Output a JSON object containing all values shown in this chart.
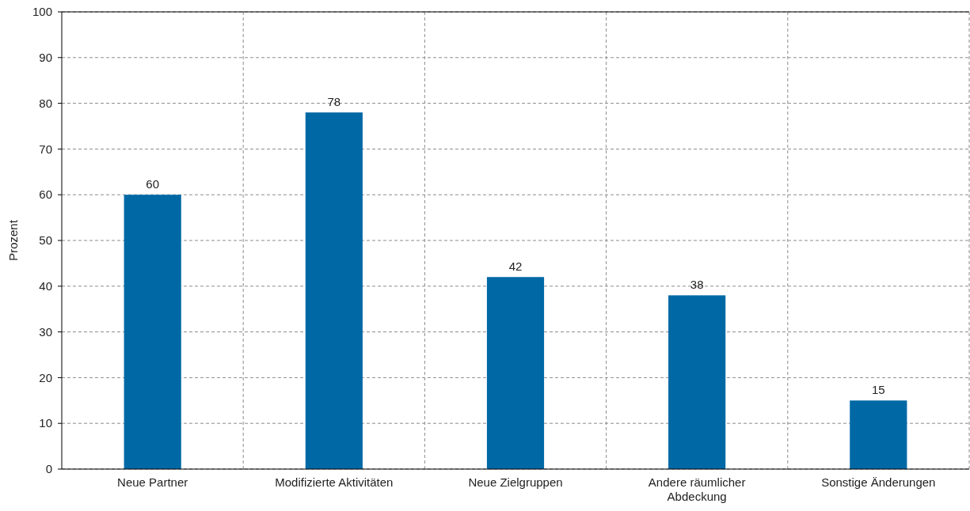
{
  "chart_data": {
    "type": "bar",
    "ylabel": "Prozent",
    "categories": [
      "Neue Partner",
      "Modifizierte Aktivitäten",
      "Neue Zielgruppen",
      "Andere räumlicher Abdeckung",
      "Sonstige Änderungen"
    ],
    "values": [
      60,
      78,
      42,
      38,
      15
    ],
    "color": "#0069a5",
    "ylim": [
      0,
      100
    ],
    "yticks": [
      0,
      10,
      20,
      30,
      40,
      50,
      60,
      70,
      80,
      90,
      100
    ],
    "grid": true,
    "data_labels": true
  }
}
